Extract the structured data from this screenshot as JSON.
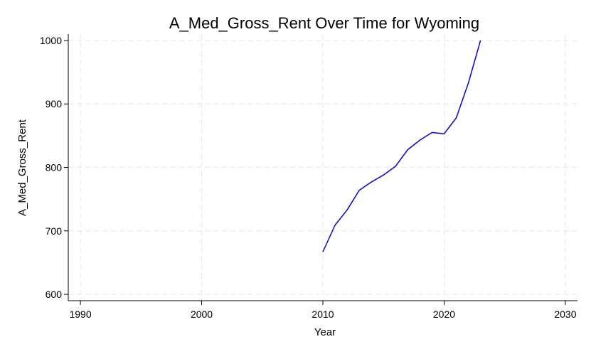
{
  "chart_data": {
    "type": "line",
    "title": "A_Med_Gross_Rent Over Time for Wyoming",
    "xlabel": "Year",
    "ylabel": "A_Med_Gross_Rent",
    "xlim": [
      1989,
      2031
    ],
    "ylim": [
      590,
      1010
    ],
    "xticks": [
      1990,
      2000,
      2010,
      2020,
      2030
    ],
    "yticks": [
      600,
      700,
      800,
      900,
      1000
    ],
    "grid": true,
    "series": [
      {
        "color": "#0000ff",
        "x": [
          2010,
          2011,
          2012,
          2013,
          2014,
          2015,
          2016,
          2017,
          2018,
          2019,
          2020,
          2021,
          2022,
          2023
        ],
        "y": [
          667,
          709,
          733,
          764,
          777,
          788,
          802,
          828,
          843,
          855,
          853,
          878,
          933,
          1000
        ]
      }
    ]
  }
}
